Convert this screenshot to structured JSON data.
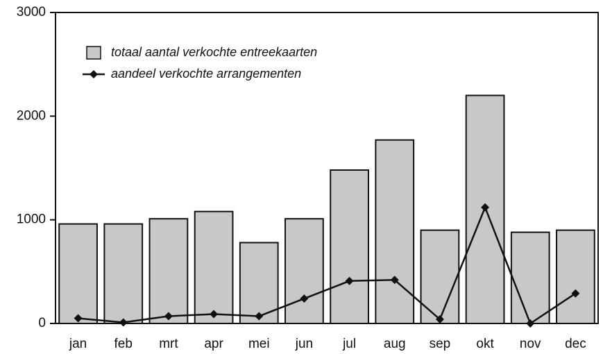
{
  "chart_data": {
    "type": "bar",
    "categories": [
      "jan",
      "feb",
      "mrt",
      "apr",
      "mei",
      "jun",
      "jul",
      "aug",
      "sep",
      "okt",
      "nov",
      "dec"
    ],
    "series": [
      {
        "name": "totaal aantal verkochte entreekaarten",
        "type": "bar",
        "color": "#c8c8c8",
        "values": [
          960,
          960,
          1010,
          1080,
          780,
          1010,
          1480,
          1770,
          900,
          2200,
          880,
          900
        ]
      },
      {
        "name": "aandeel verkochte arrangementen",
        "type": "line",
        "color": "#111111",
        "values": [
          50,
          10,
          70,
          90,
          70,
          240,
          410,
          420,
          40,
          1120,
          0,
          290
        ]
      }
    ],
    "ylim": [
      0,
      3000
    ],
    "yticks": [
      0,
      1000,
      2000,
      3000
    ],
    "grid": false,
    "legend": "upper left"
  }
}
